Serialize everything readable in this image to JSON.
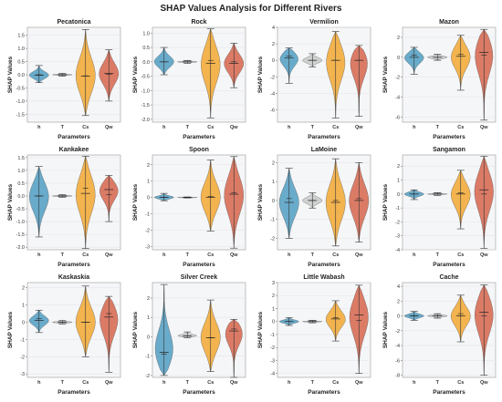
{
  "title": "SHAP Values Analysis for Different Rivers",
  "colors": {
    "h": "#4a9abf",
    "T": "#c8c8c8",
    "Cs": "#f3a52a",
    "Qw": "#d65f45",
    "panel_bg": "#f5f6f8",
    "grid": "#e6e7ea"
  },
  "chart_data": [
    {
      "type": "violin",
      "title": "Pecatonica",
      "xlabel": "Parameters",
      "ylabel": "SHAP Values",
      "categories": [
        "h",
        "T",
        "Cs",
        "Qw"
      ],
      "ylim": [
        -1.8,
        1.8
      ],
      "yticks": [
        -1.5,
        -1.0,
        -0.5,
        0.0,
        0.5,
        1.0,
        1.5
      ],
      "grid": true,
      "series": [
        {
          "param": "h",
          "min": -0.3,
          "max": 0.35,
          "median": -0.02,
          "mean": 0.0
        },
        {
          "param": "T",
          "min": -0.05,
          "max": 0.05,
          "median": 0.0,
          "mean": 0.0
        },
        {
          "param": "Cs",
          "min": -1.55,
          "max": 1.72,
          "median": -0.05,
          "mean": -0.04
        },
        {
          "param": "Qw",
          "min": -1.0,
          "max": 0.95,
          "median": 0.05,
          "mean": 0.02
        }
      ]
    },
    {
      "type": "violin",
      "title": "Rock",
      "xlabel": "Parameters",
      "ylabel": "SHAP Values",
      "categories": [
        "h",
        "T",
        "Cs",
        "Qw"
      ],
      "ylim": [
        -2.1,
        1.2
      ],
      "yticks": [
        -2.0,
        -1.5,
        -1.0,
        -0.5,
        0.0,
        0.5,
        1.0
      ],
      "grid": true,
      "series": [
        {
          "param": "h",
          "min": -0.45,
          "max": 0.5,
          "median": 0.0,
          "mean": 0.0
        },
        {
          "param": "T",
          "min": -0.05,
          "max": 0.05,
          "median": 0.0,
          "mean": 0.0
        },
        {
          "param": "Cs",
          "min": -1.95,
          "max": 1.15,
          "median": -0.05,
          "mean": 0.05
        },
        {
          "param": "Qw",
          "min": -0.9,
          "max": 0.65,
          "median": -0.05,
          "mean": 0.0
        }
      ]
    },
    {
      "type": "violin",
      "title": "Vermilion",
      "xlabel": "",
      "ylabel": "",
      "categories": [
        "h",
        "T",
        "Cs",
        "Qw"
      ],
      "ylim": [
        -7.5,
        4.0
      ],
      "yticks": [
        -6,
        -4,
        -2,
        0,
        2,
        4
      ],
      "grid": true,
      "series": [
        {
          "param": "h",
          "min": -2.8,
          "max": 1.5,
          "median": 0.3,
          "mean": 0.5
        },
        {
          "param": "T",
          "min": -0.8,
          "max": 0.8,
          "median": 0.0,
          "mean": 0.0
        },
        {
          "param": "Cs",
          "min": -7.0,
          "max": 3.5,
          "median": 0.0,
          "mean": 0.0
        },
        {
          "param": "Qw",
          "min": -6.8,
          "max": 1.8,
          "median": 0.0,
          "mean": 0.0
        }
      ]
    },
    {
      "type": "violin",
      "title": "Mazon",
      "xlabel": "",
      "ylabel": "",
      "categories": [
        "h",
        "T",
        "Cs",
        "Qw"
      ],
      "ylim": [
        -6.5,
        3.0
      ],
      "yticks": [
        -6,
        -4,
        -2,
        0,
        2
      ],
      "grid": true,
      "series": [
        {
          "param": "h",
          "min": -1.7,
          "max": 1.0,
          "median": 0.0,
          "mean": 0.2
        },
        {
          "param": "T",
          "min": -0.3,
          "max": 0.3,
          "median": 0.0,
          "mean": 0.0
        },
        {
          "param": "Cs",
          "min": -3.3,
          "max": 2.2,
          "median": 0.1,
          "mean": 0.3
        },
        {
          "param": "Qw",
          "min": -6.3,
          "max": 2.8,
          "median": 0.5,
          "mean": 0.2
        }
      ]
    },
    {
      "type": "violin",
      "title": "Kankakee",
      "xlabel": "",
      "ylabel": "SHAP Values",
      "categories": [
        "h",
        "T",
        "Cs",
        "Qw"
      ],
      "ylim": [
        -2.1,
        1.6
      ],
      "yticks": [
        -2.0,
        -1.5,
        -1.0,
        -0.5,
        0.0,
        0.5,
        1.0,
        1.5
      ],
      "grid": true,
      "series": [
        {
          "param": "h",
          "min": -1.6,
          "max": 1.15,
          "median": 0.0,
          "mean": 0.0
        },
        {
          "param": "T",
          "min": -0.05,
          "max": 0.05,
          "median": 0.0,
          "mean": 0.0
        },
        {
          "param": "Cs",
          "min": -2.05,
          "max": 1.55,
          "median": 0.1,
          "mean": 0.3
        },
        {
          "param": "Qw",
          "min": -1.0,
          "max": 0.8,
          "median": 0.25,
          "mean": 0.05
        }
      ]
    },
    {
      "type": "violin",
      "title": "Spoon",
      "xlabel": "",
      "ylabel": "",
      "categories": [
        "h",
        "T",
        "Cs",
        "Qw"
      ],
      "ylim": [
        -3.2,
        2.6
      ],
      "yticks": [
        -3,
        -2,
        -1,
        0,
        1,
        2
      ],
      "grid": true,
      "series": [
        {
          "param": "h",
          "min": -0.2,
          "max": 0.25,
          "median": 0.0,
          "mean": 0.0
        },
        {
          "param": "T",
          "min": -0.03,
          "max": 0.03,
          "median": 0.0,
          "mean": 0.0
        },
        {
          "param": "Cs",
          "min": -2.05,
          "max": 2.3,
          "median": 0.0,
          "mean": 0.05
        },
        {
          "param": "Qw",
          "min": -3.1,
          "max": 2.5,
          "median": 0.2,
          "mean": 0.3
        }
      ]
    },
    {
      "type": "violin",
      "title": "LaMoine",
      "xlabel": "",
      "ylabel": "",
      "categories": [
        "h",
        "T",
        "Cs",
        "Qw"
      ],
      "ylim": [
        -2.6,
        2.4
      ],
      "yticks": [
        -2,
        -1,
        0,
        1,
        2
      ],
      "grid": true,
      "series": [
        {
          "param": "h",
          "min": -2.0,
          "max": 1.7,
          "median": -0.1,
          "mean": 0.1
        },
        {
          "param": "T",
          "min": -0.4,
          "max": 0.4,
          "median": 0.0,
          "mean": 0.0
        },
        {
          "param": "Cs",
          "min": -2.4,
          "max": 2.2,
          "median": -0.1,
          "mean": 0.0
        },
        {
          "param": "Qw",
          "min": -2.2,
          "max": 2.0,
          "median": 0.0,
          "mean": 0.1
        }
      ]
    },
    {
      "type": "violin",
      "title": "Sangamon",
      "xlabel": "",
      "ylabel": "",
      "categories": [
        "h",
        "T",
        "Cs",
        "Qw"
      ],
      "ylim": [
        -4.0,
        2.8
      ],
      "yticks": [
        -4,
        -3,
        -2,
        -1,
        0,
        1,
        2
      ],
      "grid": true,
      "series": [
        {
          "param": "h",
          "min": -0.4,
          "max": 0.3,
          "median": 0.0,
          "mean": 0.0
        },
        {
          "param": "T",
          "min": -0.1,
          "max": 0.1,
          "median": 0.0,
          "mean": 0.0
        },
        {
          "param": "Cs",
          "min": -2.5,
          "max": 1.7,
          "median": 0.0,
          "mean": 0.1
        },
        {
          "param": "Qw",
          "min": -3.9,
          "max": 2.7,
          "median": 0.3,
          "mean": 0.0
        }
      ]
    },
    {
      "type": "violin",
      "title": "Kaskaskia",
      "xlabel": "Parameters",
      "ylabel": "SHAP Values",
      "categories": [
        "h",
        "T",
        "Cs",
        "Qw"
      ],
      "ylim": [
        -3.2,
        2.3
      ],
      "yticks": [
        -3,
        -2,
        -1,
        0,
        1,
        2
      ],
      "grid": true,
      "series": [
        {
          "param": "h",
          "min": -0.6,
          "max": 0.7,
          "median": 0.1,
          "mean": 0.2
        },
        {
          "param": "T",
          "min": -0.1,
          "max": 0.1,
          "median": 0.0,
          "mean": 0.0
        },
        {
          "param": "Cs",
          "min": -2.0,
          "max": 2.1,
          "median": 0.0,
          "mean": 0.0
        },
        {
          "param": "Qw",
          "min": -2.9,
          "max": 1.5,
          "median": 0.3,
          "mean": 0.5
        }
      ]
    },
    {
      "type": "violin",
      "title": "Silver Creek",
      "xlabel": "Parameters",
      "ylabel": "",
      "categories": [
        "h",
        "T",
        "Cs",
        "Qw"
      ],
      "ylim": [
        -2.1,
        2.8
      ],
      "yticks": [
        -2,
        -1,
        0,
        1,
        2
      ],
      "grid": true,
      "series": [
        {
          "param": "h",
          "min": -2.0,
          "max": 2.7,
          "median": -0.8,
          "mean": -0.9
        },
        {
          "param": "T",
          "min": -0.05,
          "max": 0.25,
          "median": 0.05,
          "mean": 0.05
        },
        {
          "param": "Cs",
          "min": -1.8,
          "max": 1.9,
          "median": -0.05,
          "mean": -0.05
        },
        {
          "param": "Qw",
          "min": -2.1,
          "max": 0.9,
          "median": 0.3,
          "mean": 0.4
        }
      ]
    },
    {
      "type": "violin",
      "title": "Little Wabash",
      "xlabel": "Parameters",
      "ylabel": "",
      "categories": [
        "h",
        "T",
        "Cs",
        "Qw"
      ],
      "ylim": [
        -4.3,
        3.0
      ],
      "yticks": [
        -4,
        -3,
        -2,
        -1,
        0,
        1,
        2,
        3
      ],
      "grid": true,
      "series": [
        {
          "param": "h",
          "min": -0.3,
          "max": 0.3,
          "median": 0.0,
          "mean": 0.0
        },
        {
          "param": "T",
          "min": -0.1,
          "max": 0.1,
          "median": 0.0,
          "mean": 0.0
        },
        {
          "param": "Cs",
          "min": -1.5,
          "max": 1.6,
          "median": 0.2,
          "mean": 0.3
        },
        {
          "param": "Qw",
          "min": -4.0,
          "max": 2.8,
          "median": 0.5,
          "mean": 0.1
        }
      ]
    },
    {
      "type": "violin",
      "title": "Cache",
      "xlabel": "Parameters",
      "ylabel": "",
      "categories": [
        "h",
        "T",
        "Cs",
        "Qw"
      ],
      "ylim": [
        -8.3,
        4.5
      ],
      "yticks": [
        -8,
        -6,
        -4,
        -2,
        0,
        2,
        4
      ],
      "grid": true,
      "series": [
        {
          "param": "h",
          "min": -0.6,
          "max": 0.6,
          "median": 0.0,
          "mean": 0.0
        },
        {
          "param": "T",
          "min": -0.3,
          "max": 0.3,
          "median": 0.0,
          "mean": 0.0
        },
        {
          "param": "Cs",
          "min": -3.5,
          "max": 2.8,
          "median": 0.0,
          "mean": 0.3
        },
        {
          "param": "Qw",
          "min": -8.0,
          "max": 4.2,
          "median": 0.5,
          "mean": 0.0
        }
      ]
    }
  ]
}
